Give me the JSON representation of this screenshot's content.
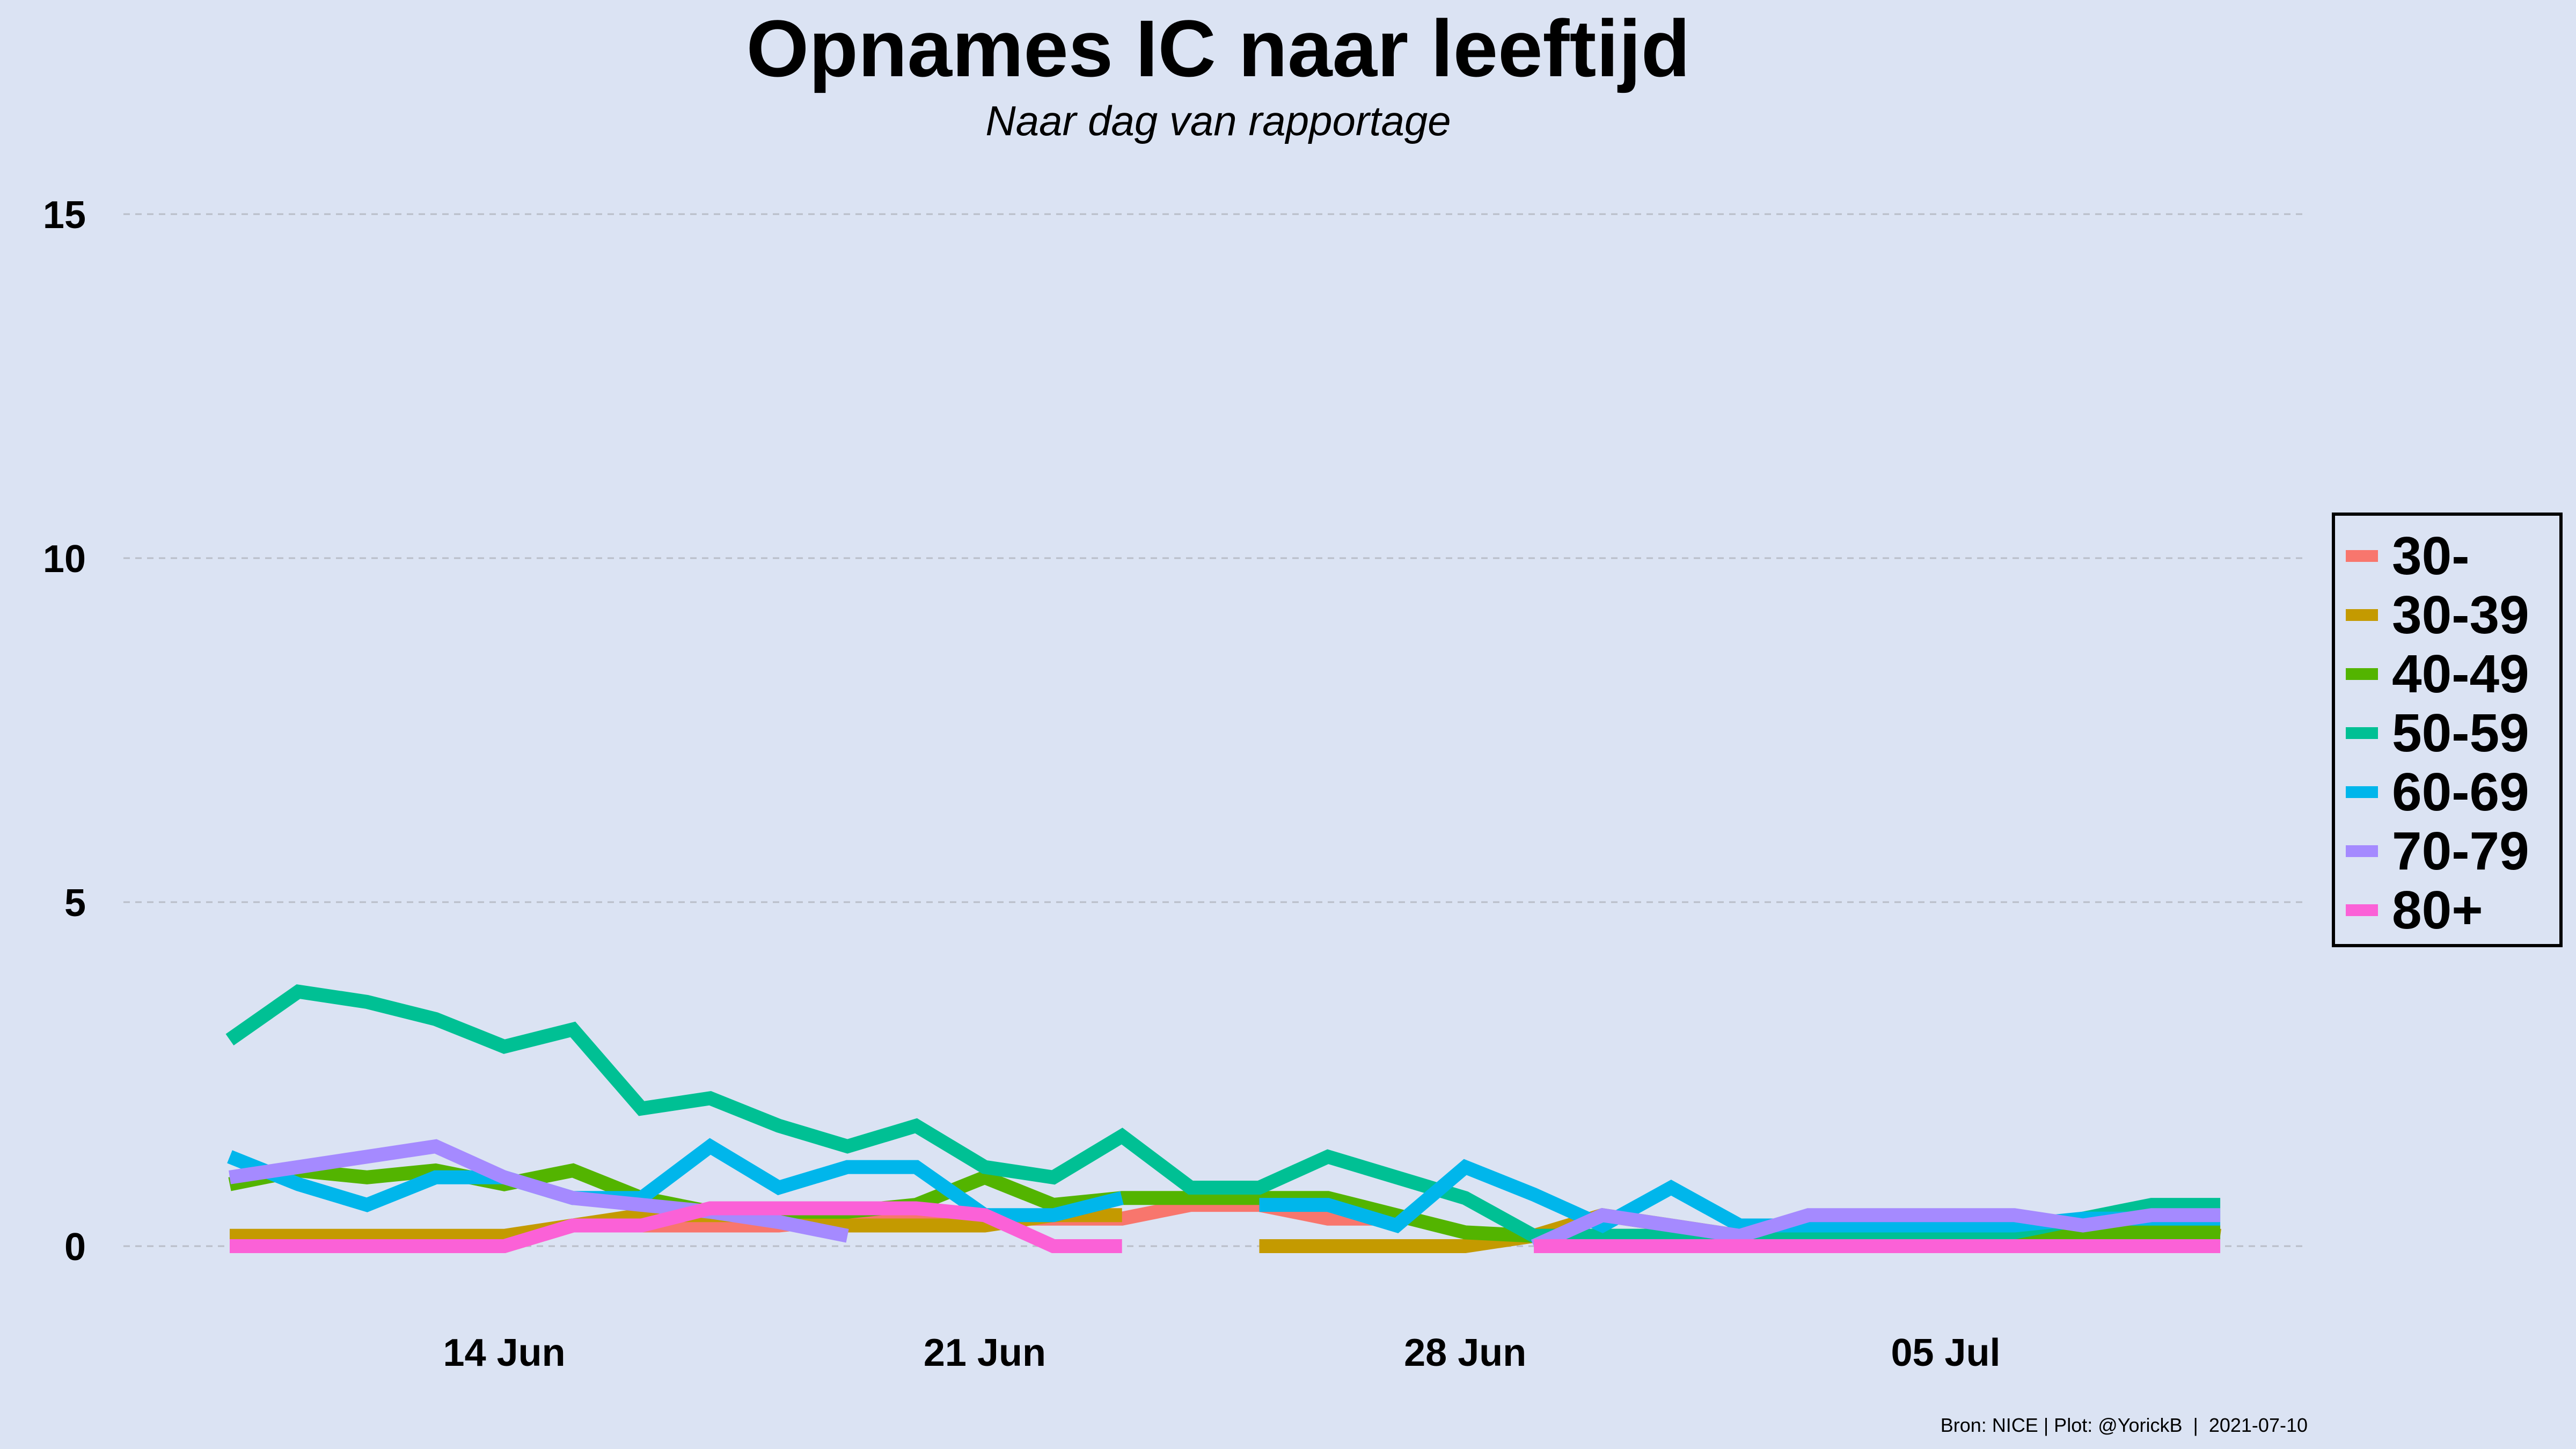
{
  "chart_data": {
    "type": "line",
    "title": "Opnames IC naar leeftijd",
    "subtitle": "Naar dag van rapportage",
    "caption": "Bron: NICE | Plot: @YorickB  |  2021-07-10",
    "ylim": [
      0,
      15
    ],
    "yticks": [
      0,
      5,
      10,
      15
    ],
    "xticks": [
      {
        "day": 14,
        "label": "14 Jun"
      },
      {
        "day": 21,
        "label": "21 Jun"
      },
      {
        "day": 28,
        "label": "28 Jun"
      },
      {
        "day": 35,
        "label": "05 Jul"
      }
    ],
    "x_dates": [
      "2021-06-10",
      "2021-06-11",
      "2021-06-12",
      "2021-06-13",
      "2021-06-14",
      "2021-06-15",
      "2021-06-16",
      "2021-06-17",
      "2021-06-18",
      "2021-06-19",
      "2021-06-20",
      "2021-06-21",
      "2021-06-22",
      "2021-06-23",
      "2021-06-24",
      "2021-06-25",
      "2021-06-26",
      "2021-06-27",
      "2021-06-28",
      "2021-06-29",
      "2021-06-30",
      "2021-07-01",
      "2021-07-02",
      "2021-07-03",
      "2021-07-04",
      "2021-07-05",
      "2021-07-06",
      "2021-07-07",
      "2021-07-08",
      "2021-07-09"
    ],
    "grid": "horizontal dashed",
    "legend_position": "right",
    "series": [
      {
        "name": "30-",
        "color": "#f8766d",
        "values": [
          0,
          0,
          0,
          0,
          0,
          0.3,
          0.3,
          0.3,
          0.3,
          0.4,
          0.4,
          0.4,
          0.4,
          0.4,
          0.6,
          0.6,
          0.4,
          0.4,
          null,
          null,
          null,
          null,
          null,
          null,
          null,
          null,
          null,
          null,
          null,
          null
        ]
      },
      {
        "name": "30-39",
        "color": "#c49a00",
        "values": [
          0.15,
          0.15,
          0.15,
          0.15,
          0.15,
          0.3,
          0.45,
          0.45,
          0.45,
          0.3,
          0.3,
          0.3,
          0.45,
          0.45,
          null,
          0,
          0,
          0,
          0,
          0.15,
          0.45,
          0.3,
          0.15,
          0.15,
          0.15,
          0.3,
          0.15,
          0.15,
          0.3,
          0.15
        ]
      },
      {
        "name": "40-49",
        "color": "#53b400",
        "values": [
          0.9,
          1.1,
          1.0,
          1.1,
          0.9,
          1.1,
          0.7,
          0.5,
          0.5,
          0.5,
          0.6,
          1.0,
          0.6,
          0.7,
          0.7,
          0.7,
          0.7,
          0.45,
          0.2,
          0.15,
          0.15,
          0.15,
          0.15,
          0.15,
          0.15,
          0.15,
          0.2,
          0.2,
          0.2,
          0.2
        ]
      },
      {
        "name": "50-59",
        "color": "#00c094",
        "values": [
          3.0,
          3.7,
          3.55,
          3.3,
          2.9,
          3.15,
          2.0,
          2.15,
          1.75,
          1.45,
          1.75,
          1.15,
          1.0,
          1.6,
          0.85,
          0.85,
          1.3,
          1.0,
          0.7,
          0.15,
          0.15,
          0.15,
          0.15,
          0.2,
          0.2,
          0.2,
          0.2,
          0.4,
          0.6,
          0.6
        ]
      },
      {
        "name": "60-69",
        "color": "#00b6eb",
        "values": [
          1.3,
          0.9,
          0.6,
          1.0,
          1.0,
          0.7,
          0.7,
          1.45,
          0.85,
          1.15,
          1.15,
          0.45,
          0.45,
          0.7,
          null,
          0.6,
          0.6,
          0.3,
          1.15,
          0.75,
          0.3,
          0.85,
          0.3,
          0.3,
          0.3,
          0.3,
          0.3,
          0.4,
          0.4,
          0.4
        ]
      },
      {
        "name": "70-79",
        "color": "#a58aff",
        "values": [
          1.0,
          1.15,
          1.3,
          1.45,
          1.0,
          0.7,
          0.6,
          0.5,
          0.35,
          0.15,
          null,
          null,
          null,
          null,
          null,
          null,
          null,
          null,
          null,
          0,
          0.45,
          0.3,
          0.15,
          0.45,
          0.45,
          0.45,
          0.45,
          0.3,
          0.45,
          0.45
        ]
      },
      {
        "name": "80+",
        "color": "#fb61d7",
        "values": [
          0,
          0,
          0,
          0,
          0,
          0.3,
          0.3,
          0.55,
          0.55,
          0.55,
          0.55,
          0.45,
          0,
          0,
          null,
          null,
          null,
          null,
          null,
          0,
          0,
          0,
          0,
          0,
          0,
          0,
          0,
          0,
          0,
          0
        ]
      }
    ]
  }
}
